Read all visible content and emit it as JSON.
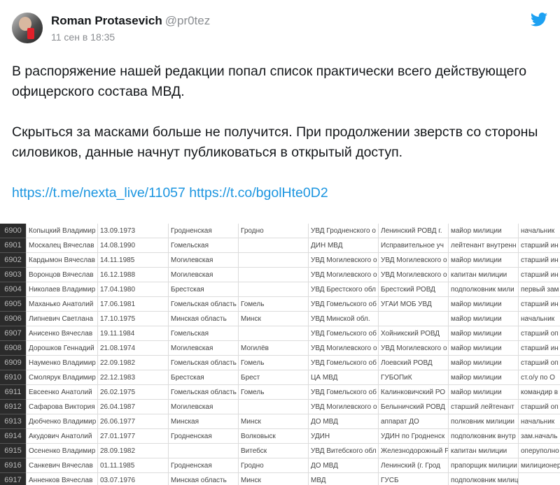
{
  "tweet": {
    "author_name": "Roman Protasevich",
    "author_handle": "@pr0tez",
    "timestamp": "11 сен в 18:35",
    "paragraph1": "В распоряжение нашей редакции попал список практически всего действующего офицерского состава МВД.",
    "paragraph2": "Скрыться за масками больше не получится. При продолжении зверств со стороны силовиков, данные начнут публиковаться в открытый доступ.",
    "link1": "https://t.me/nexta_live/11057",
    "link2": "https://t.co/bgolHte0D2",
    "brand_color": "#1da1f2",
    "link_color": "#1b95e0"
  },
  "sheet": {
    "rows": [
      [
        "6900",
        "Копыцкий Владимир",
        "13.09.1973",
        "Гродненская",
        "Гродно",
        "УВД Гродненского о",
        "Ленинский РОВД г.",
        "майор милиции",
        "начальник"
      ],
      [
        "6901",
        "Москалец Вячеслав",
        "14.08.1990",
        "Гомельская",
        "",
        "ДИН МВД",
        "Исправительное уч",
        "лейтенант внутренн",
        "старший ин"
      ],
      [
        "6902",
        "Кардымон Вячеслав",
        "14.11.1985",
        "Могилевская",
        "",
        "УВД Могилевского о",
        "УВД Могилевского о",
        "майор милиции",
        "старший ин"
      ],
      [
        "6903",
        "Воронцов Вячеслав",
        "16.12.1988",
        "Могилевская",
        "",
        "УВД Могилевского о",
        "УВД Могилевского о",
        "капитан милиции",
        "старший ин"
      ],
      [
        "6904",
        "Николаев Владимир",
        "17.04.1980",
        "Брестская",
        "",
        "УВД Брестского обл",
        "Брестский РОВД",
        "подполковник мили",
        "первый зам"
      ],
      [
        "6905",
        "Маханько Анатолий",
        "17.06.1981",
        "Гомельская область",
        "Гомель",
        "УВД Гомельского об",
        "УГАИ МОБ УВД",
        "майор милиции",
        "старший ин"
      ],
      [
        "6906",
        "Липневич Светлана",
        "17.10.1975",
        "Минская область",
        "Минск",
        "УВД Минской обл.",
        "",
        "майор милиции",
        "начальник"
      ],
      [
        "6907",
        "Анисенко Вячеслав",
        "19.11.1984",
        "Гомельская",
        "",
        "УВД Гомельского об",
        "Хойникский РОВД",
        "майор милиции",
        "старший оп"
      ],
      [
        "6908",
        "Дорошков Геннадий",
        "21.08.1974",
        "Могилевская",
        "Могилёв",
        "УВД Могилевского о",
        "УВД Могилевского о",
        "майор милиции",
        "старший ин"
      ],
      [
        "6909",
        "Науменко Владимир",
        "22.09.1982",
        "Гомельская область",
        "Гомель",
        "УВД Гомельского об",
        "Лоевский РОВД",
        "майор милиции",
        "старший оп"
      ],
      [
        "6910",
        "Смолярук Владимир",
        "22.12.1983",
        "Брестская",
        "Брест",
        "ЦА МВД",
        "ГУБОПиК",
        "майор милиции",
        "ст.о/у по О"
      ],
      [
        "6911",
        "Евсеенко Анатолий",
        "26.02.1975",
        "Гомельская область",
        "Гомель",
        "УВД Гомельского об",
        "Калинковичский РО",
        "майор милиции",
        "командир в"
      ],
      [
        "6912",
        "Сафарова Виктория",
        "26.04.1987",
        "Могилевская",
        "",
        "УВД Могилевского о",
        "Белыничский РОВД",
        "старший лейтенант",
        "старший оп"
      ],
      [
        "6913",
        "Дюбченко Владимир",
        "26.06.1977",
        "Минская",
        "Минск",
        "ДО МВД",
        "аппарат ДО",
        "полковник милиции",
        "начальник"
      ],
      [
        "6914",
        "Акудович Анатолий",
        "27.01.1977",
        "Гродненская",
        "Волковыск",
        "УДИН",
        "УДИН по Гродненск",
        "подполковник внутр",
        "зам.началь"
      ],
      [
        "6915",
        "Осененко Владимир",
        "28.09.1982",
        "",
        "Витебск",
        "УВД Витебского обл",
        "Железнодорожный Р",
        "капитан милиции",
        "оперуполно"
      ],
      [
        "6916",
        "Санкевич Вячеслав",
        "01.11.1985",
        "Гродненская",
        "Гродно",
        "ДО МВД",
        "Ленинский (г. Грод",
        "прапорщик милиции",
        "милиционер"
      ],
      [
        "6917",
        "Анненков Вячеслав",
        "03.07.1976",
        "Минская область",
        "Минск",
        "МВД",
        "ГУСБ",
        "подполковник милиции",
        ""
      ]
    ]
  }
}
